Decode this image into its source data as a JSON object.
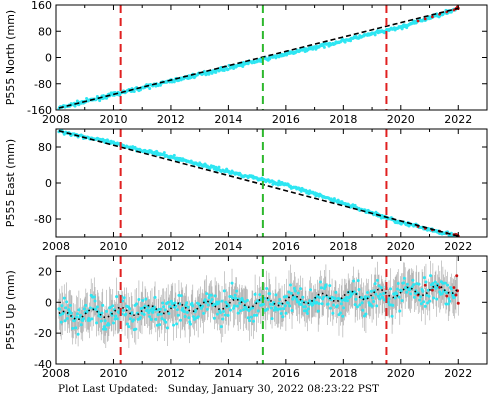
{
  "footer": {
    "text": "Plot Last Updated:   Sunday, January 30, 2022 08:23:22 PST"
  },
  "colors": {
    "data": "#2ee6f2",
    "error_bar": "#a8a8a8",
    "model": "#000000",
    "event_red": "#e02020",
    "event_green": "#2db82d",
    "recent": "#cc1111"
  },
  "chart_data": [
    {
      "type": "scatter",
      "ylabel": "P555 North (mm)",
      "xlim": [
        2008,
        2023
      ],
      "ylim": [
        -160,
        160
      ],
      "xticks": [
        2008,
        2010,
        2012,
        2014,
        2016,
        2018,
        2020,
        2022
      ],
      "yticks": [
        -160,
        -80,
        0,
        80,
        160
      ],
      "series": [
        {
          "x": [
            2008.1,
            2010,
            2012,
            2014,
            2016,
            2018,
            2020,
            2022.0
          ],
          "values": [
            -154,
            -113,
            -72,
            -31,
            10,
            51,
            92,
            150
          ]
        }
      ],
      "model": {
        "x": [
          2008.1,
          2022.0
        ],
        "values": [
          -154,
          150
        ]
      },
      "noise": 4,
      "seasonal": 0,
      "error_bar": 0,
      "event_lines": [
        {
          "x": 2010.25,
          "color": "event_red"
        },
        {
          "x": 2015.2,
          "color": "event_green"
        },
        {
          "x": 2019.5,
          "color": "event_red"
        }
      ]
    },
    {
      "type": "scatter",
      "ylabel": "P555 East (mm)",
      "xlim": [
        2008,
        2023
      ],
      "ylim": [
        -120,
        120
      ],
      "xticks": [
        2008,
        2010,
        2012,
        2014,
        2016,
        2018,
        2020,
        2022
      ],
      "yticks": [
        -80,
        0,
        80
      ],
      "series": [
        {
          "x": [
            2008.1,
            2010,
            2012,
            2014,
            2016,
            2018,
            2020,
            2022.0
          ],
          "values": [
            116,
            88,
            58,
            25,
            -4,
            -45,
            -88,
            -118
          ]
        }
      ],
      "model": {
        "x": [
          2008.1,
          2022.0
        ],
        "values": [
          116,
          -118
        ]
      },
      "noise": 3,
      "seasonal": 0,
      "error_bar": 0,
      "event_lines": [
        {
          "x": 2010.25,
          "color": "event_red"
        },
        {
          "x": 2015.2,
          "color": "event_green"
        },
        {
          "x": 2019.5,
          "color": "event_red"
        }
      ]
    },
    {
      "type": "scatter",
      "ylabel": "P555 Up (mm)",
      "xlim": [
        2008,
        2023
      ],
      "ylim": [
        -40,
        30
      ],
      "xticks": [
        2008,
        2010,
        2012,
        2014,
        2016,
        2018,
        2020,
        2022
      ],
      "yticks": [
        -40,
        -20,
        0,
        20
      ],
      "series": [
        {
          "x": [
            2008.1,
            2010,
            2012,
            2014,
            2016,
            2018,
            2020,
            2022.0
          ],
          "values": [
            -9,
            -7,
            -5,
            -3,
            0,
            2,
            6,
            9
          ]
        }
      ],
      "model": {
        "x": [
          2008.1,
          2022.0
        ],
        "values": [
          -9,
          9
        ]
      },
      "noise": 7,
      "seasonal": 3,
      "error_bar": 10,
      "event_lines": [
        {
          "x": 2010.25,
          "color": "event_red"
        },
        {
          "x": 2015.2,
          "color": "event_green"
        },
        {
          "x": 2019.5,
          "color": "event_red"
        }
      ]
    }
  ]
}
